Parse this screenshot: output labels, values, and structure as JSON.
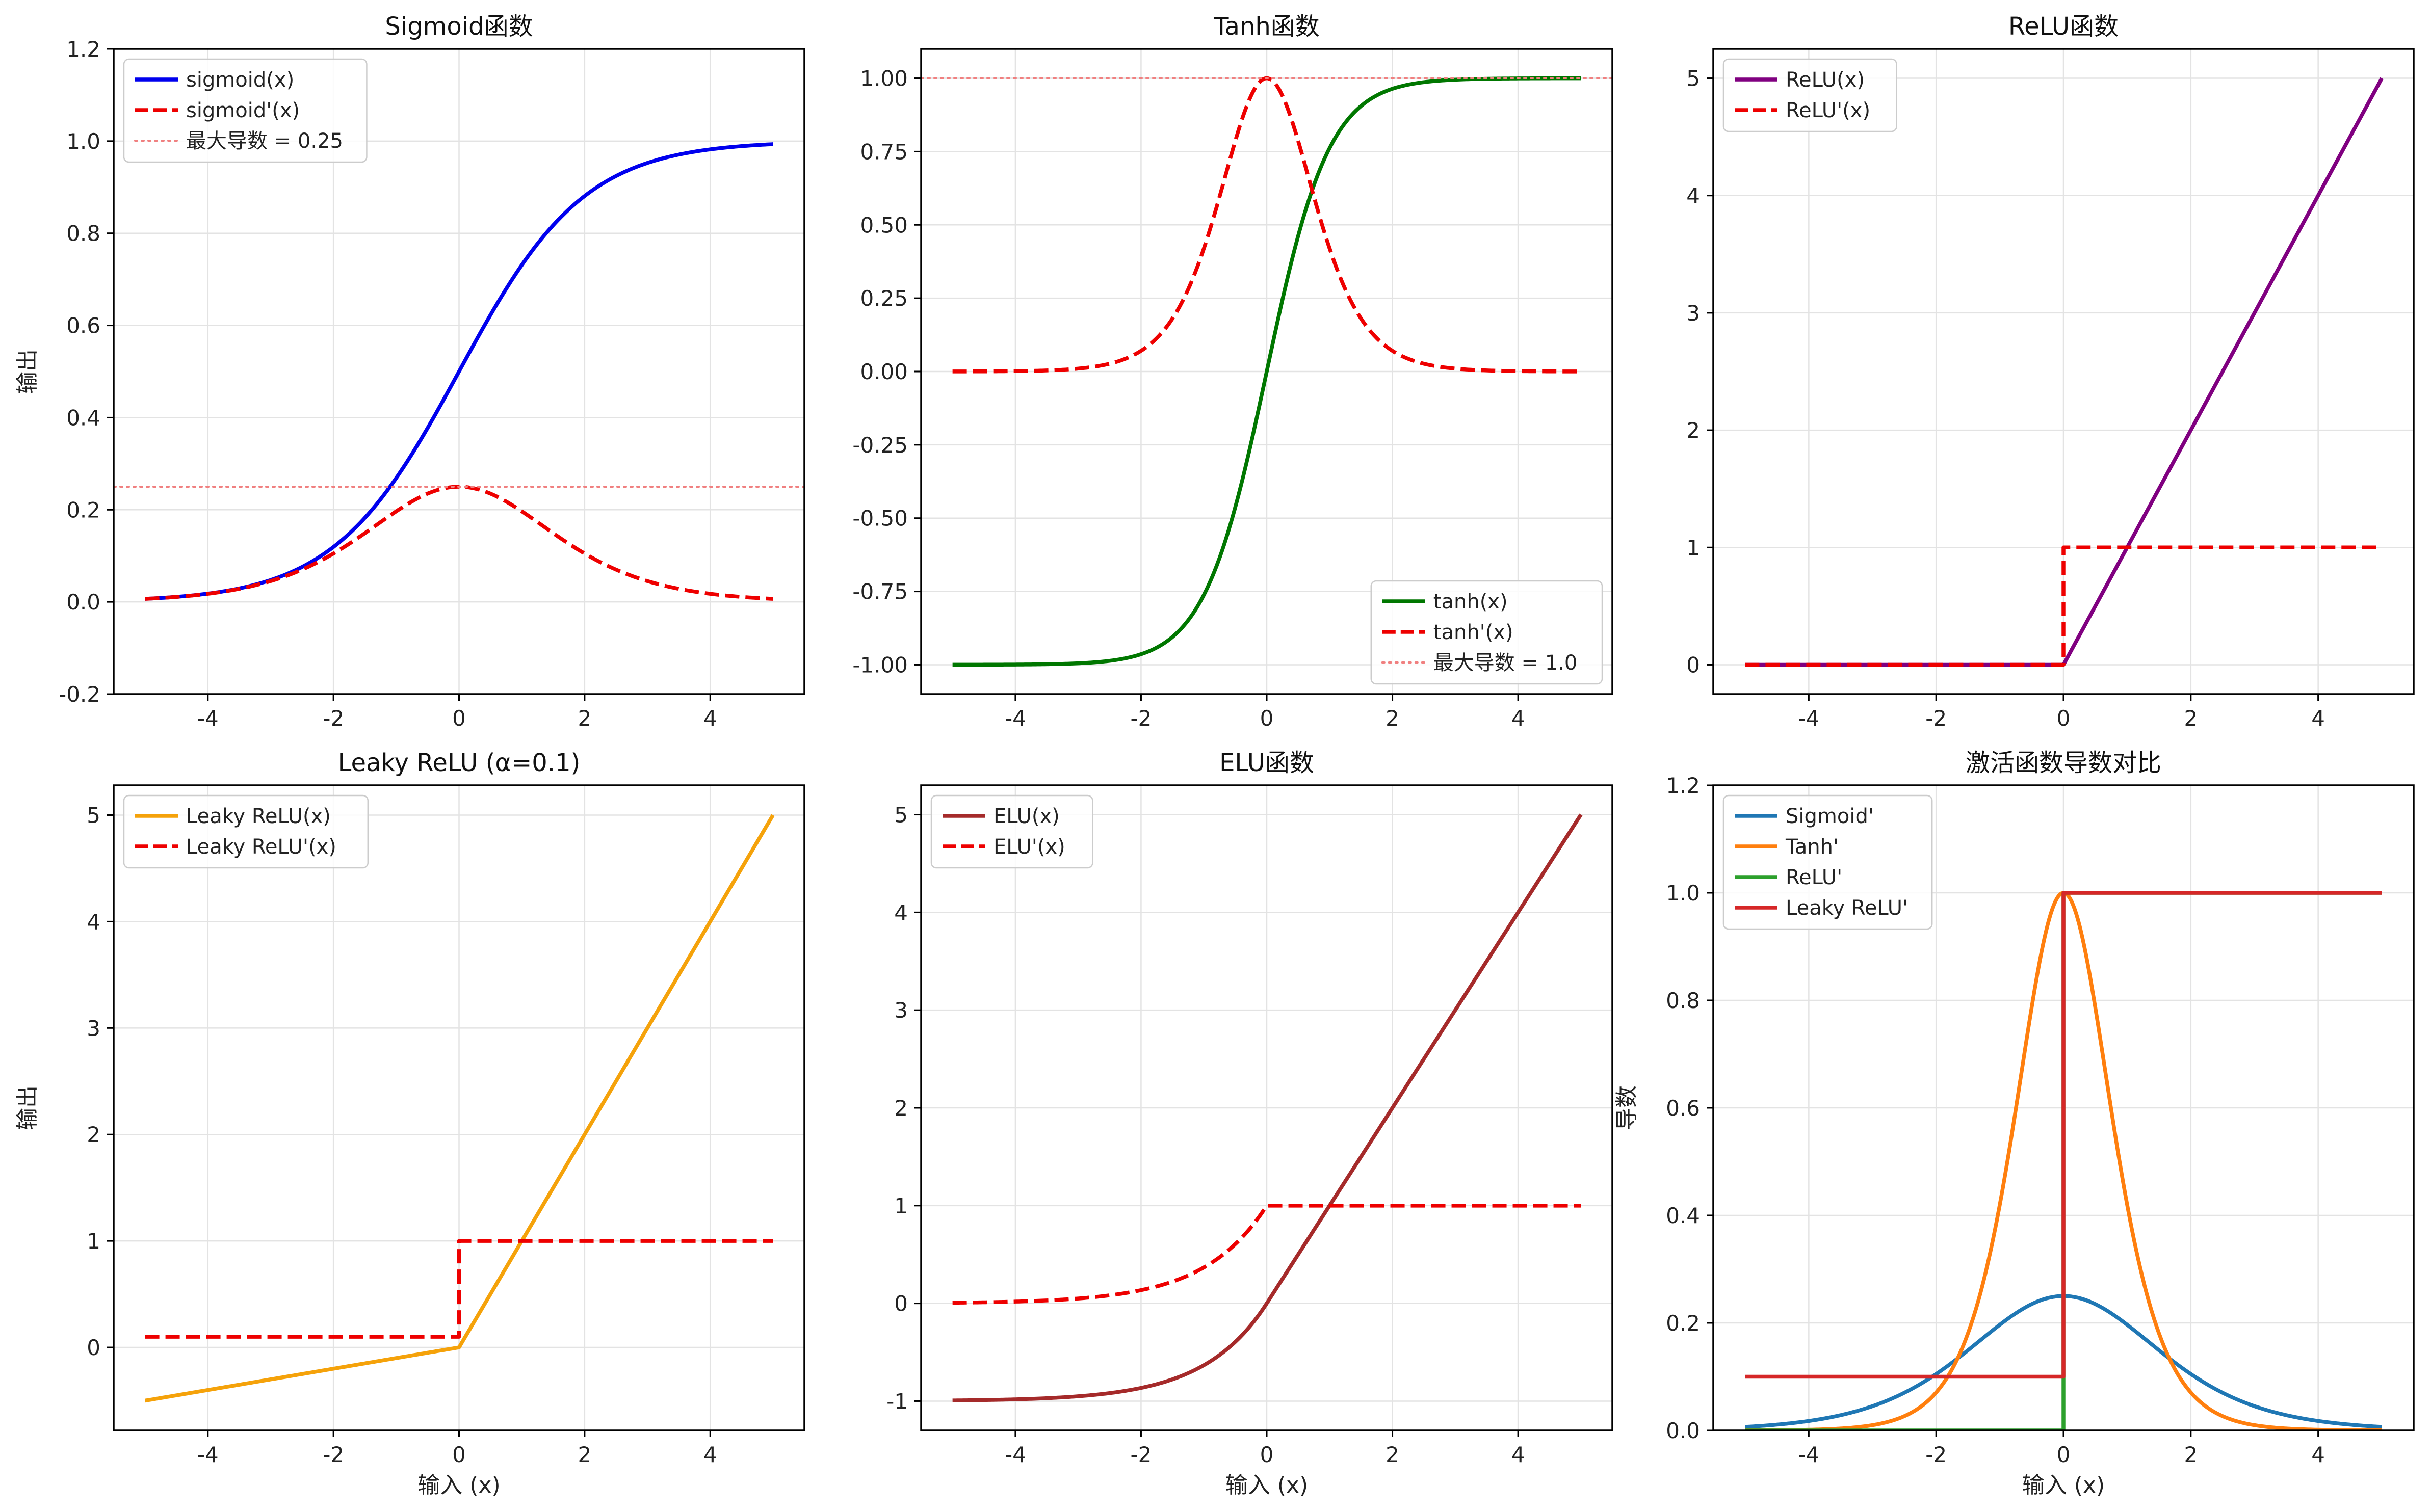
{
  "figure_title": "",
  "chart_data": [
    {
      "id": "sigmoid",
      "type": "line",
      "title": "Sigmoid函数",
      "xlabel": "",
      "ylabel": "输出",
      "xlim": [
        -5.5,
        5.5
      ],
      "ylim": [
        -0.2,
        1.2
      ],
      "xticks": [
        -4,
        -2,
        0,
        2,
        4
      ],
      "xtick_labels": [
        "-4",
        "-2",
        "0",
        "2",
        "4"
      ],
      "yticks": [
        -0.2,
        0.0,
        0.2,
        0.4,
        0.6,
        0.8,
        1.0,
        1.2
      ],
      "ytick_labels": [
        "-0.2",
        "0.0",
        "0.2",
        "0.4",
        "0.6",
        "0.8",
        "1.0",
        "1.2"
      ],
      "grid": true,
      "legend_position": "top-left",
      "series": [
        {
          "name": "sigmoid(x)",
          "function": "sigmoid",
          "x_range": [
            -5,
            5
          ],
          "color": "#0000ee",
          "dash": "solid"
        },
        {
          "name": "sigmoid'(x)",
          "function": "sigmoid_deriv",
          "x_range": [
            -5,
            5
          ],
          "color": "#ee0000",
          "dash": "dashed"
        },
        {
          "name": "最大导数 = 0.25",
          "function": "hline",
          "value": 0.25,
          "color": "#f08080",
          "dash": "dotted"
        }
      ]
    },
    {
      "id": "tanh",
      "type": "line",
      "title": "Tanh函数",
      "xlabel": "",
      "ylabel": "",
      "xlim": [
        -5.5,
        5.5
      ],
      "ylim": [
        -1.1,
        1.1
      ],
      "xticks": [
        -4,
        -2,
        0,
        2,
        4
      ],
      "xtick_labels": [
        "-4",
        "-2",
        "0",
        "2",
        "4"
      ],
      "yticks": [
        -1.0,
        -0.75,
        -0.5,
        -0.25,
        0.0,
        0.25,
        0.5,
        0.75,
        1.0
      ],
      "ytick_labels": [
        "-1.00",
        "-0.75",
        "-0.50",
        "-0.25",
        "0.00",
        "0.25",
        "0.50",
        "0.75",
        "1.00"
      ],
      "grid": true,
      "legend_position": "bottom-right",
      "series": [
        {
          "name": "tanh(x)",
          "function": "tanh",
          "x_range": [
            -5,
            5
          ],
          "color": "#007700",
          "dash": "solid"
        },
        {
          "name": "tanh'(x)",
          "function": "tanh_deriv",
          "x_range": [
            -5,
            5
          ],
          "color": "#ee0000",
          "dash": "dashed"
        },
        {
          "name": "最大导数 = 1.0",
          "function": "hline",
          "value": 1.0,
          "color": "#f08080",
          "dash": "dotted"
        }
      ]
    },
    {
      "id": "relu",
      "type": "line",
      "title": "ReLU函数",
      "xlabel": "",
      "ylabel": "",
      "xlim": [
        -5.5,
        5.5
      ],
      "ylim": [
        -0.25,
        5.25
      ],
      "xticks": [
        -4,
        -2,
        0,
        2,
        4
      ],
      "xtick_labels": [
        "-4",
        "-2",
        "0",
        "2",
        "4"
      ],
      "yticks": [
        0,
        1,
        2,
        3,
        4,
        5
      ],
      "ytick_labels": [
        "0",
        "1",
        "2",
        "3",
        "4",
        "5"
      ],
      "grid": true,
      "legend_position": "top-left",
      "series": [
        {
          "name": "ReLU(x)",
          "function": "relu",
          "x_range": [
            -5,
            5
          ],
          "color": "#800080",
          "dash": "solid"
        },
        {
          "name": "ReLU'(x)",
          "function": "relu_deriv",
          "x_range": [
            -5,
            5
          ],
          "color": "#ee0000",
          "dash": "dashed"
        }
      ]
    },
    {
      "id": "leaky_relu",
      "type": "line",
      "title": "Leaky ReLU (α=0.1)",
      "xlabel": "输入 (x)",
      "ylabel": "输出",
      "xlim": [
        -5.5,
        5.5
      ],
      "ylim": [
        -0.78,
        5.28
      ],
      "xticks": [
        -4,
        -2,
        0,
        2,
        4
      ],
      "xtick_labels": [
        "-4",
        "-2",
        "0",
        "2",
        "4"
      ],
      "yticks": [
        0,
        1,
        2,
        3,
        4,
        5
      ],
      "ytick_labels": [
        "0",
        "1",
        "2",
        "3",
        "4",
        "5"
      ],
      "grid": true,
      "legend_position": "top-left",
      "series": [
        {
          "name": "Leaky ReLU(x)",
          "function": "leaky_relu",
          "alpha": 0.1,
          "x_range": [
            -5,
            5
          ],
          "color": "#f5a20a",
          "dash": "solid"
        },
        {
          "name": "Leaky ReLU'(x)",
          "function": "leaky_relu_deriv",
          "alpha": 0.1,
          "x_range": [
            -5,
            5
          ],
          "color": "#ee0000",
          "dash": "dashed"
        }
      ]
    },
    {
      "id": "elu",
      "type": "line",
      "title": "ELU函数",
      "xlabel": "输入 (x)",
      "ylabel": "",
      "xlim": [
        -5.5,
        5.5
      ],
      "ylim": [
        -1.3,
        5.3
      ],
      "xticks": [
        -4,
        -2,
        0,
        2,
        4
      ],
      "xtick_labels": [
        "-4",
        "-2",
        "0",
        "2",
        "4"
      ],
      "yticks": [
        -1,
        0,
        1,
        2,
        3,
        4,
        5
      ],
      "ytick_labels": [
        "-1",
        "0",
        "1",
        "2",
        "3",
        "4",
        "5"
      ],
      "grid": true,
      "legend_position": "top-left",
      "series": [
        {
          "name": "ELU(x)",
          "function": "elu",
          "alpha": 1.0,
          "x_range": [
            -5,
            5
          ],
          "color": "#a52a2a",
          "dash": "solid"
        },
        {
          "name": "ELU'(x)",
          "function": "elu_deriv",
          "alpha": 1.0,
          "x_range": [
            -5,
            5
          ],
          "color": "#ee0000",
          "dash": "dashed"
        }
      ]
    },
    {
      "id": "derivatives",
      "type": "line",
      "title": "激活函数导数对比",
      "xlabel": "输入 (x)",
      "ylabel": "导数",
      "xlim": [
        -5.5,
        5.5
      ],
      "ylim": [
        0.0,
        1.2
      ],
      "xticks": [
        -4,
        -2,
        0,
        2,
        4
      ],
      "xtick_labels": [
        "-4",
        "-2",
        "0",
        "2",
        "4"
      ],
      "yticks": [
        0.0,
        0.2,
        0.4,
        0.6,
        0.8,
        1.0,
        1.2
      ],
      "ytick_labels": [
        "0.0",
        "0.2",
        "0.4",
        "0.6",
        "0.8",
        "1.0",
        "1.2"
      ],
      "grid": true,
      "legend_position": "top-left",
      "series": [
        {
          "name": "Sigmoid'",
          "function": "sigmoid_deriv",
          "x_range": [
            -5,
            5
          ],
          "color": "#1f77b4",
          "dash": "solid"
        },
        {
          "name": "Tanh'",
          "function": "tanh_deriv",
          "x_range": [
            -5,
            5
          ],
          "color": "#ff7f0e",
          "dash": "solid"
        },
        {
          "name": "ReLU'",
          "function": "relu_deriv",
          "x_range": [
            -5,
            5
          ],
          "color": "#2ca02c",
          "dash": "solid"
        },
        {
          "name": "Leaky ReLU'",
          "function": "leaky_relu_deriv",
          "alpha": 0.1,
          "x_range": [
            -5,
            5
          ],
          "color": "#d62728",
          "dash": "solid"
        }
      ]
    }
  ]
}
